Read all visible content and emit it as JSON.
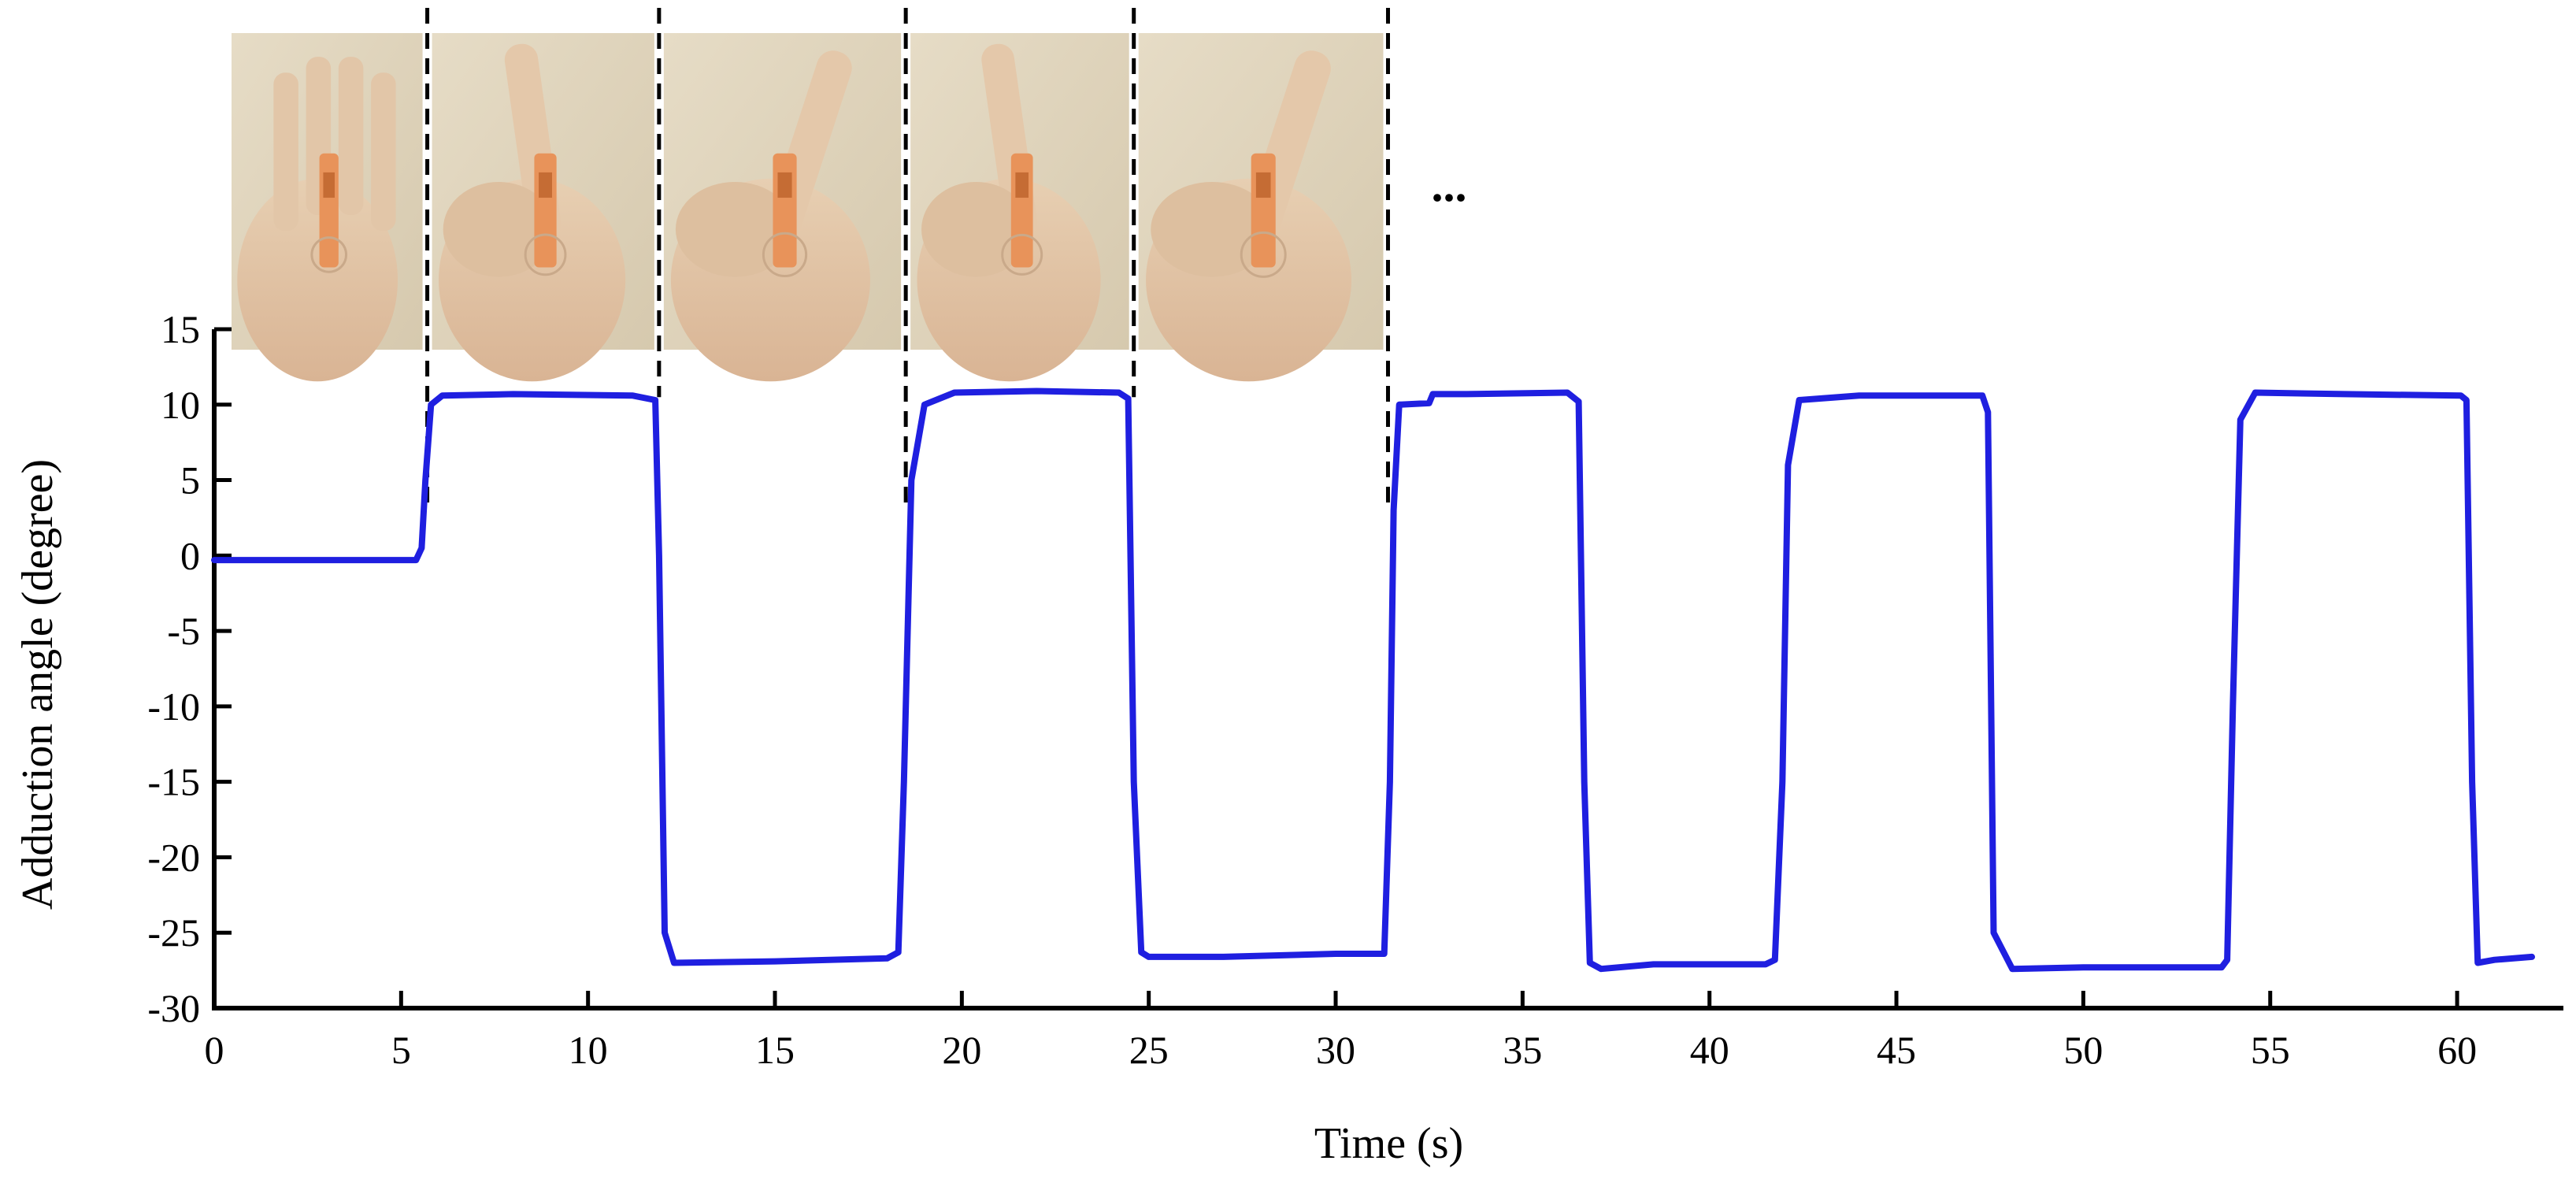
{
  "chart_data": {
    "type": "line",
    "xlabel": "Time (s)",
    "ylabel": "Adduction angle (degree)",
    "xlim": [
      0,
      62
    ],
    "ylim": [
      -30,
      15
    ],
    "x_ticks": [
      0,
      5,
      10,
      15,
      20,
      25,
      30,
      35,
      40,
      45,
      50,
      55,
      60
    ],
    "y_ticks": [
      15,
      10,
      5,
      0,
      -5,
      -10,
      -15,
      -20,
      -25,
      -30
    ],
    "grid": false,
    "series": [
      {
        "color": "#1f1fe0",
        "x": [
          0,
          5.4,
          5.55,
          5.65,
          5.8,
          6.1,
          8,
          11.2,
          11.8,
          11.9,
          12.05,
          12.3,
          15,
          18,
          18.3,
          18.45,
          18.65,
          19,
          19.8,
          22,
          24.2,
          24.45,
          24.6,
          24.8,
          25,
          27,
          30,
          31.3,
          31.45,
          31.55,
          31.7,
          32.5,
          32.6,
          33.5,
          36.2,
          36.5,
          36.65,
          36.8,
          37.1,
          38.5,
          41.5,
          41.75,
          41.95,
          42.1,
          42.4,
          44,
          47.3,
          47.45,
          47.6,
          48.1,
          50,
          53.7,
          53.85,
          54.0,
          54.2,
          54.6,
          57,
          60.1,
          60.25,
          60.4,
          60.55,
          61,
          62.0
        ],
        "y": [
          -0.3,
          -0.3,
          0.5,
          5,
          10,
          10.6,
          10.7,
          10.6,
          10.3,
          0,
          -25,
          -27,
          -26.9,
          -26.7,
          -26.3,
          -15,
          5,
          10,
          10.8,
          10.9,
          10.8,
          10.4,
          -15,
          -26.3,
          -26.6,
          -26.6,
          -26.4,
          -26.4,
          -15,
          3,
          10,
          10.1,
          10.7,
          10.7,
          10.8,
          10.2,
          -15,
          -27,
          -27.4,
          -27.1,
          -27.1,
          -26.8,
          -15,
          6,
          10.3,
          10.6,
          10.6,
          9.5,
          -25,
          -27.4,
          -27.3,
          -27.3,
          -26.8,
          -10,
          9,
          10.8,
          10.7,
          10.6,
          10.3,
          -15,
          -27,
          -26.8,
          -26.6
        ]
      }
    ],
    "dashed_markers_x": [
      5.7,
      11.9,
      18.5,
      24.6,
      31.4
    ],
    "ellipsis": "...",
    "photo_panel_count": 5
  }
}
